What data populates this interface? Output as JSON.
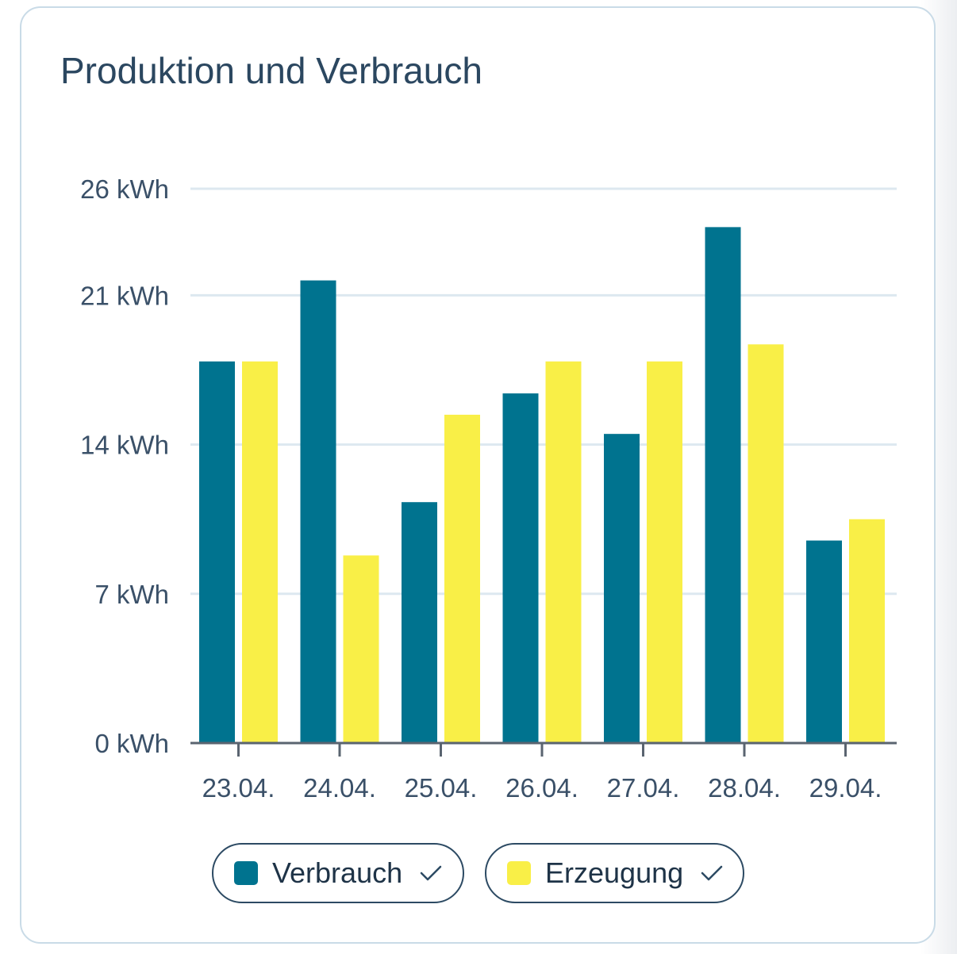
{
  "title": "Produktion und Verbrauch",
  "colors": {
    "verbrauch": "#00738f",
    "erzeugung": "#f9ef47",
    "grid": "#dde8f0",
    "axis": "#5a6470",
    "text": "#3a5068"
  },
  "legend": [
    {
      "label": "Verbrauch",
      "color": "#00738f",
      "checked": true,
      "icon": "check-icon"
    },
    {
      "label": "Erzeugung",
      "color": "#f9ef47",
      "checked": true,
      "icon": "check-icon"
    }
  ],
  "chart_data": {
    "type": "bar",
    "title": "Produktion und Verbrauch",
    "categories": [
      "23.04.",
      "24.04.",
      "25.04.",
      "26.04.",
      "27.04.",
      "28.04.",
      "29.04."
    ],
    "series": [
      {
        "name": "Verbrauch",
        "values": [
          17.9,
          21.7,
          11.3,
          16.4,
          14.5,
          24.2,
          9.5
        ]
      },
      {
        "name": "Erzeugung",
        "values": [
          17.9,
          8.8,
          15.4,
          17.9,
          17.9,
          18.7,
          10.5
        ]
      }
    ],
    "yticks": [
      0,
      7,
      14,
      21,
      26
    ],
    "ytick_labels": [
      "0 kWh",
      "7 kWh",
      "14 kWh",
      "21 kWh",
      "26 kWh"
    ],
    "ylim": [
      0,
      26
    ],
    "unit": "kWh",
    "grid": true,
    "legend_position": "bottom"
  }
}
